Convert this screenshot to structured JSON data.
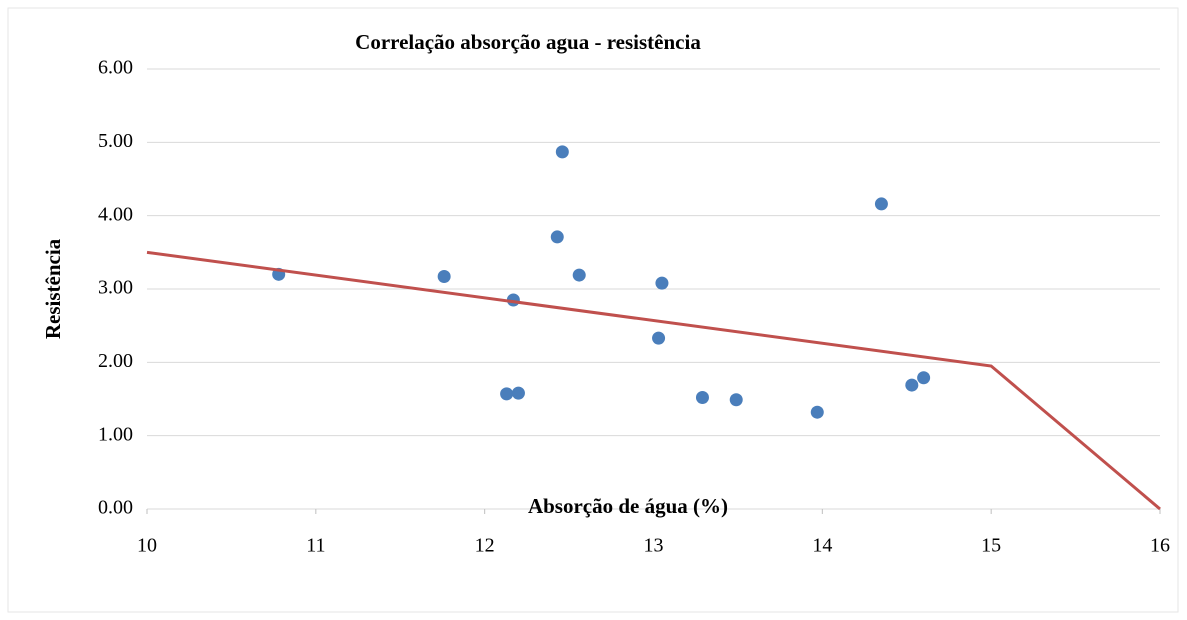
{
  "chart_data": {
    "type": "scatter",
    "title": "Correlação absorção agua - resistência",
    "x_label": "Absorção de água (%)",
    "y_label": "Resistência",
    "xlim": [
      10,
      16
    ],
    "xticks": [
      10,
      11,
      12,
      13,
      14,
      15,
      16
    ],
    "ylim": [
      0,
      6
    ],
    "yticks": [
      {
        "value": 0,
        "label": "0.00"
      },
      {
        "value": 1,
        "label": "1.00"
      },
      {
        "value": 2,
        "label": "2.00"
      },
      {
        "value": 3,
        "label": "3.00"
      },
      {
        "value": 4,
        "label": "4.00"
      },
      {
        "value": 5,
        "label": "5.00"
      },
      {
        "value": 6,
        "label": "6.00"
      }
    ],
    "grid": true,
    "series": [
      {
        "type": "scatter",
        "color": "#4a7ebb",
        "x": [
          10.78,
          11.76,
          12.17,
          12.13,
          12.2,
          12.43,
          12.46,
          12.56,
          13.03,
          13.05,
          13.29,
          13.49,
          13.97,
          14.35,
          14.53,
          14.6
        ],
        "values": [
          3.2,
          3.17,
          2.85,
          1.57,
          1.58,
          3.71,
          4.87,
          3.19,
          2.33,
          3.08,
          1.52,
          1.49,
          1.32,
          4.16,
          1.69,
          1.79
        ]
      },
      {
        "type": "line",
        "color": "#c0504d",
        "x": [
          10,
          15,
          16
        ],
        "values": [
          3.5,
          1.95,
          0
        ]
      }
    ]
  }
}
